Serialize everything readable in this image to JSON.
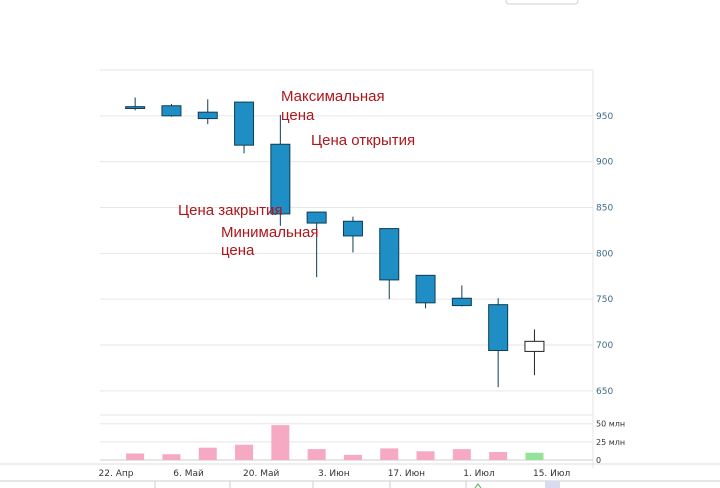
{
  "chart_data": {
    "type": "candlestick",
    "title": "",
    "xlabel": "",
    "ylabel": "",
    "x_tick_labels": [
      "22. Апр",
      "6. Май",
      "20. Май",
      "3. Июн",
      "17. Июн",
      "1. Июл",
      "15. Июл"
    ],
    "y_ticks": [
      650,
      700,
      750,
      800,
      850,
      900,
      950
    ],
    "ylim": [
      640,
      1000
    ],
    "volume_tick_labels": [
      "50 млн",
      "25 млн",
      "0"
    ],
    "volume_ticks": [
      50,
      25,
      0
    ],
    "volume_unit": "млн",
    "volume_ylim": [
      0,
      62
    ],
    "grid": true,
    "candles": [
      {
        "open": 960,
        "high": 970,
        "low": 956,
        "close": 958,
        "volume": 9,
        "week": 1
      },
      {
        "open": 961,
        "high": 963,
        "low": 949,
        "close": 950,
        "volume": 8,
        "week": 3
      },
      {
        "open": 954,
        "high": 968,
        "low": 941,
        "close": 947,
        "volume": 17,
        "week": 5
      },
      {
        "open": 965,
        "high": 965,
        "low": 909,
        "close": 918,
        "volume": 21,
        "week": 7
      },
      {
        "open": 919,
        "high": 951,
        "low": 830,
        "close": 843,
        "volume": 48,
        "week": 9
      },
      {
        "open": 845,
        "high": 845,
        "low": 774,
        "close": 833,
        "volume": 15,
        "week": 11
      },
      {
        "open": 835,
        "high": 840,
        "low": 801,
        "close": 819,
        "volume": 7,
        "week": 13
      },
      {
        "open": 827,
        "high": 827,
        "low": 750,
        "close": 771,
        "volume": 16,
        "week": 15
      },
      {
        "open": 776,
        "high": 776,
        "low": 740,
        "close": 746,
        "volume": 12,
        "week": 17
      },
      {
        "open": 751,
        "high": 765,
        "low": 742,
        "close": 743,
        "volume": 15,
        "week": 19
      },
      {
        "open": 744,
        "high": 751,
        "low": 654,
        "close": 694,
        "volume": 11,
        "week": 21
      },
      {
        "open": 693,
        "high": 717,
        "low": 667,
        "close": 704,
        "volume": 10,
        "week": 23
      }
    ],
    "x_tick_weeks": [
      0,
      4,
      8,
      12,
      16,
      20,
      24
    ],
    "annotations": [
      {
        "text": "Максимальная цена",
        "lines": [
          "Максимальная",
          "цена"
        ]
      },
      {
        "text": "Цена открытия",
        "lines": [
          "Цена открытия"
        ]
      },
      {
        "text": "Цена закрытия",
        "lines": [
          "Цена закрытия"
        ]
      },
      {
        "text": "Минимальная цена",
        "lines": [
          "Минимальная",
          "цена"
        ]
      }
    ],
    "colors": {
      "down_fill": "#1f8ec4",
      "down_stroke": "#0f3d57",
      "up_fill": "#ffffff",
      "up_stroke": "#222222",
      "volume_down": "#f6a9c2",
      "volume_up": "#93e39a",
      "grid": "#e6e6e6",
      "annotation": "#b0151b",
      "navigator": "#d8dcf0"
    }
  }
}
